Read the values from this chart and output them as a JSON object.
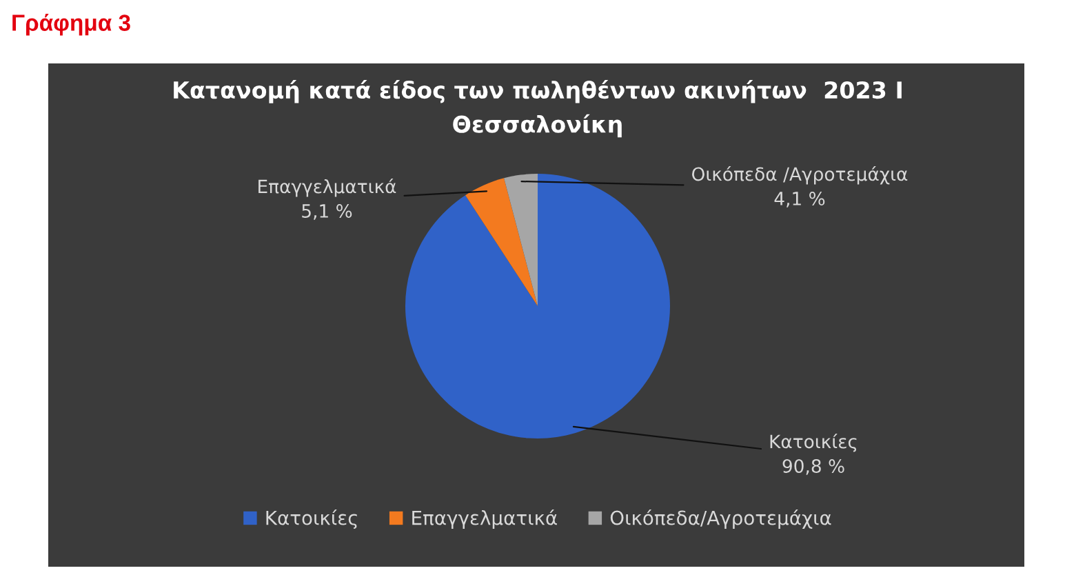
{
  "chart_data": {
    "type": "pie",
    "title": "Κατανομή κατά είδος των πωληθέντων ακινήτων  2023 Ι\nΘεσσαλονίκη",
    "categories": [
      "Κατοικίες",
      "Επαγγελματικά",
      "Οικόπεδα/Αγροτεμάχια"
    ],
    "values": [
      90.8,
      5.1,
      4.1
    ],
    "colors": [
      "#3062c8",
      "#f37a1f",
      "#a6a6a6"
    ],
    "value_labels": [
      "Κατοικίες\n90,8 %",
      "Επαγγελματικά\n5,1 %",
      "Οικόπεδα /Αγροτεμάχια\n4,1 %"
    ],
    "legend": "bottom",
    "annotations": [
      "Γράφημα 3"
    ]
  }
}
